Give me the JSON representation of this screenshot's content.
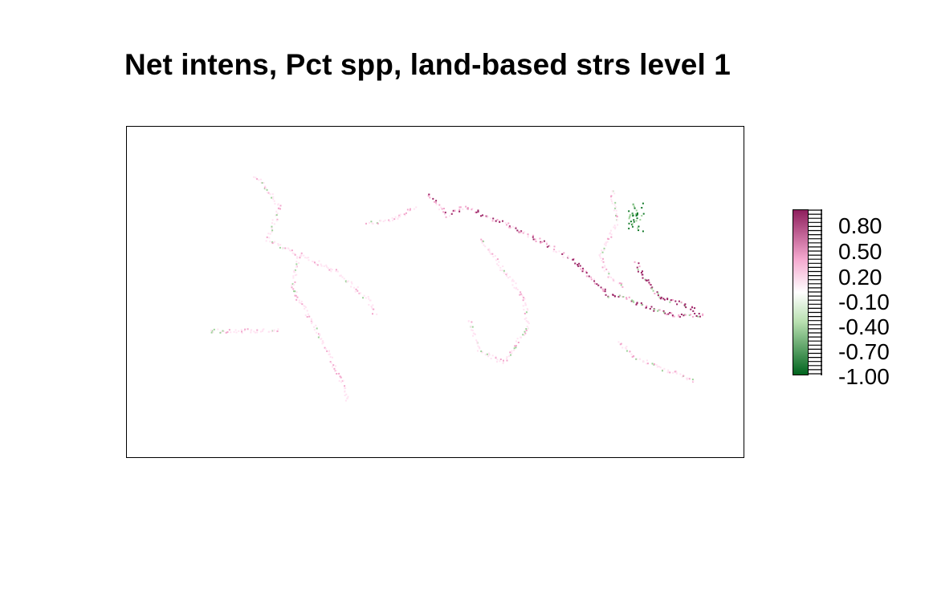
{
  "title": "Net intens, Pct spp, land-based strs level 1",
  "legend": {
    "labels": [
      "0.80",
      "0.50",
      "0.20",
      "-0.10",
      "-0.40",
      "-0.70",
      "-1.00"
    ],
    "values": [
      0.8,
      0.5,
      0.2,
      -0.1,
      -0.4,
      -0.7,
      -1.0
    ],
    "range": [
      -1.0,
      1.0
    ],
    "colors": {
      "low": "#00641e",
      "lowmid": "#b8e0b0",
      "mid": "#ffffff",
      "highmid": "#f5a9cf",
      "high": "#8e1f5d"
    }
  },
  "colors": {
    "frame": "#000000",
    "coast_neutral": "#ffe3f2",
    "positive_light": "#f2a6cc",
    "positive_strong": "#9b2365",
    "negative_light": "#9ed29a",
    "negative_strong": "#137a2a"
  }
}
